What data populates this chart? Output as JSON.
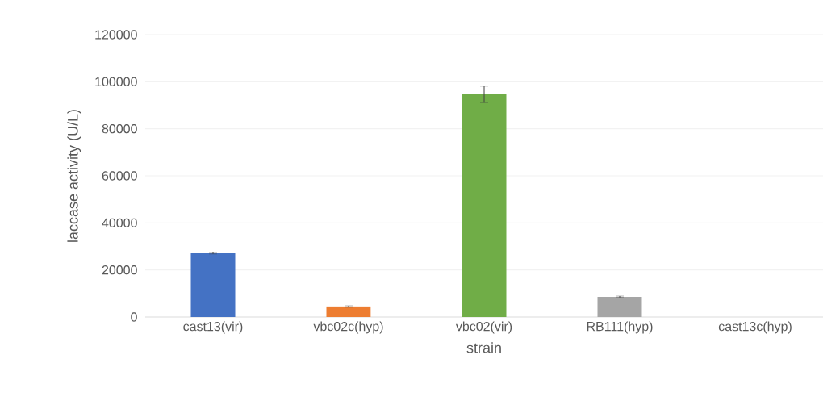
{
  "chart_data": {
    "type": "bar",
    "xlabel": "strain",
    "ylabel": "laccase activity (U/L)",
    "categories": [
      "cast13(vir)",
      "vbc02c(hyp)",
      "vbc02(vir)",
      "RB111(hyp)",
      "cast13c(hyp)"
    ],
    "values": [
      27100,
      4500,
      94600,
      8600,
      0
    ],
    "errors": [
      300,
      300,
      3500,
      300,
      null
    ],
    "colors": [
      "#4472c4",
      "#ed7d31",
      "#70ad47",
      "#a5a5a5",
      "#ffc000"
    ],
    "ylim": [
      0,
      120000
    ],
    "yticks": [
      0,
      20000,
      40000,
      60000,
      80000,
      100000,
      120000
    ],
    "grid": "y"
  }
}
